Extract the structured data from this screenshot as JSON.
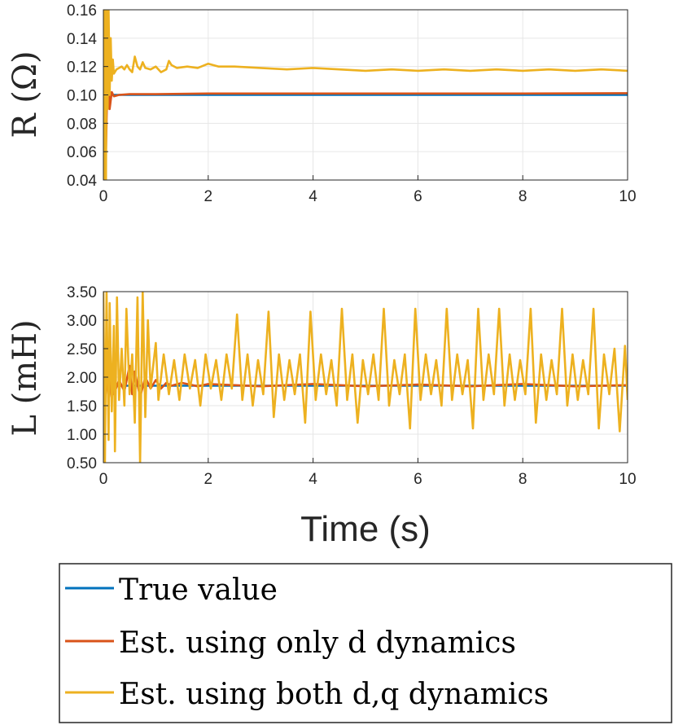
{
  "colors": {
    "true_value": "#0072BD",
    "d_only": "#D95319",
    "dq_both": "#EDB120",
    "grid": "#e6e6e6",
    "axis": "#262626"
  },
  "chart_data": [
    {
      "type": "line",
      "ylabel": "R (Ω)",
      "xlabel": "",
      "xlim": [
        0,
        10
      ],
      "ylim": [
        0.04,
        0.16
      ],
      "xticks": [
        0,
        2,
        4,
        6,
        8,
        10
      ],
      "xtick_labels": [
        "0",
        "2",
        "4",
        "6",
        "8",
        "10"
      ],
      "yticks": [
        0.04,
        0.06,
        0.08,
        0.1,
        0.12,
        0.14,
        0.16
      ],
      "ytick_labels": [
        "0.04",
        "0.06",
        "0.08",
        "0.10",
        "0.12",
        "0.14",
        "0.16"
      ],
      "grid": true,
      "series": [
        {
          "name": "True value",
          "color": "#0072BD",
          "x": [
            0,
            10
          ],
          "y": [
            0.1,
            0.1
          ]
        },
        {
          "name": "Est. using only d dynamics",
          "color": "#D95319",
          "x": [
            0,
            0.02,
            0.05,
            0.08,
            0.12,
            0.16,
            0.2,
            0.3,
            0.5,
            1,
            2,
            4,
            6,
            8,
            10
          ],
          "y": [
            0.1,
            0.13,
            0.06,
            0.12,
            0.09,
            0.102,
            0.099,
            0.1,
            0.1005,
            0.1005,
            0.101,
            0.101,
            0.101,
            0.101,
            0.1012
          ]
        },
        {
          "name": "Est. using both d,q dynamics",
          "color": "#EDB120",
          "x": [
            0,
            0.02,
            0.03,
            0.05,
            0.06,
            0.08,
            0.1,
            0.12,
            0.14,
            0.16,
            0.18,
            0.2,
            0.25,
            0.3,
            0.35,
            0.4,
            0.45,
            0.5,
            0.55,
            0.6,
            0.65,
            0.7,
            0.75,
            0.8,
            0.9,
            1.0,
            1.1,
            1.2,
            1.25,
            1.3,
            1.4,
            1.6,
            1.8,
            2.0,
            2.2,
            2.5,
            3.0,
            3.5,
            4.0,
            4.5,
            5.0,
            5.5,
            6.0,
            6.5,
            7.0,
            7.5,
            8.0,
            8.5,
            9.0,
            9.5,
            10
          ],
          "y": [
            0.16,
            0.04,
            0.16,
            0.04,
            0.16,
            0.09,
            0.16,
            0.1,
            0.14,
            0.11,
            0.125,
            0.115,
            0.118,
            0.119,
            0.12,
            0.118,
            0.121,
            0.118,
            0.116,
            0.127,
            0.12,
            0.118,
            0.123,
            0.119,
            0.118,
            0.12,
            0.116,
            0.118,
            0.124,
            0.121,
            0.119,
            0.12,
            0.119,
            0.122,
            0.12,
            0.12,
            0.119,
            0.118,
            0.119,
            0.118,
            0.117,
            0.118,
            0.117,
            0.118,
            0.117,
            0.118,
            0.117,
            0.118,
            0.117,
            0.118,
            0.117
          ]
        }
      ]
    },
    {
      "type": "line",
      "ylabel": "L (mH)",
      "xlabel": "Time (s)",
      "xlim": [
        0,
        10
      ],
      "ylim": [
        0.5,
        3.5
      ],
      "xticks": [
        0,
        2,
        4,
        6,
        8,
        10
      ],
      "xtick_labels": [
        "0",
        "2",
        "4",
        "6",
        "8",
        "10"
      ],
      "yticks": [
        0.5,
        1.0,
        1.5,
        2.0,
        2.5,
        3.0,
        3.5
      ],
      "ytick_labels": [
        "0.50",
        "1.00",
        "1.50",
        "2.00",
        "2.50",
        "3.00",
        "3.50"
      ],
      "grid": true,
      "series": [
        {
          "name": "True value",
          "color": "#0072BD",
          "x": [
            0,
            10
          ],
          "y": [
            1.85,
            1.85
          ]
        },
        {
          "name": "Est. using only d dynamics",
          "color": "#D95319",
          "x": [
            0,
            0.05,
            0.1,
            0.15,
            0.2,
            0.3,
            0.4,
            0.5,
            0.55,
            0.6,
            0.7,
            0.8,
            0.9,
            1.0,
            1.1,
            1.2,
            1.3,
            1.5,
            1.8,
            2.0,
            3.0,
            4.0,
            5.0,
            6.0,
            7.0,
            8.0,
            9.0,
            10.0
          ],
          "y": [
            1.85,
            2.1,
            1.6,
            2.0,
            1.7,
            1.95,
            1.75,
            2.2,
            1.7,
            2.1,
            1.65,
            2.0,
            1.8,
            1.95,
            1.8,
            1.9,
            1.85,
            1.9,
            1.84,
            1.88,
            1.84,
            1.88,
            1.84,
            1.87,
            1.84,
            1.88,
            1.84,
            1.86
          ]
        },
        {
          "name": "Est. using both d,q dynamics",
          "color": "#EDB120",
          "x": [
            0,
            0.03,
            0.06,
            0.1,
            0.12,
            0.16,
            0.2,
            0.22,
            0.26,
            0.3,
            0.35,
            0.4,
            0.44,
            0.5,
            0.55,
            0.6,
            0.65,
            0.7,
            0.75,
            0.8,
            0.85,
            0.9,
            1.0,
            1.05,
            1.15,
            1.25,
            1.35,
            1.45,
            1.55,
            1.65,
            1.75,
            1.85,
            1.95,
            2.05,
            2.15,
            2.25,
            2.35,
            2.45,
            2.55,
            2.65,
            2.75,
            2.85,
            2.95,
            3.05,
            3.15,
            3.25,
            3.35,
            3.45,
            3.55,
            3.65,
            3.75,
            3.85,
            3.95,
            4.05,
            4.15,
            4.25,
            4.35,
            4.45,
            4.55,
            4.65,
            4.75,
            4.85,
            4.95,
            5.05,
            5.15,
            5.25,
            5.35,
            5.45,
            5.55,
            5.65,
            5.75,
            5.85,
            5.95,
            6.05,
            6.15,
            6.25,
            6.35,
            6.45,
            6.55,
            6.65,
            6.75,
            6.85,
            6.95,
            7.05,
            7.15,
            7.25,
            7.35,
            7.45,
            7.55,
            7.65,
            7.75,
            7.85,
            7.95,
            8.05,
            8.15,
            8.25,
            8.35,
            8.45,
            8.55,
            8.65,
            8.75,
            8.85,
            8.95,
            9.05,
            9.15,
            9.25,
            9.35,
            9.45,
            9.55,
            9.65,
            9.75,
            9.85,
            9.95,
            10.0
          ],
          "y": [
            3.5,
            0.5,
            3.5,
            0.9,
            3.3,
            1.4,
            2.9,
            0.7,
            3.4,
            1.6,
            2.5,
            1.5,
            3.2,
            1.7,
            2.4,
            1.2,
            3.4,
            0.5,
            3.5,
            1.3,
            3.0,
            1.8,
            2.6,
            1.6,
            2.4,
            1.7,
            2.3,
            1.6,
            2.4,
            1.8,
            2.3,
            1.5,
            2.4,
            1.8,
            2.3,
            1.6,
            2.4,
            1.8,
            3.1,
            1.6,
            2.4,
            1.5,
            2.3,
            1.7,
            3.15,
            1.3,
            2.4,
            1.6,
            2.3,
            1.7,
            2.4,
            1.2,
            3.15,
            1.6,
            2.4,
            1.7,
            2.3,
            1.5,
            3.2,
            1.6,
            2.4,
            1.2,
            2.3,
            1.7,
            2.4,
            1.6,
            3.2,
            1.5,
            2.3,
            1.7,
            2.4,
            1.1,
            3.2,
            1.6,
            2.4,
            1.7,
            2.3,
            1.5,
            3.2,
            1.6,
            2.4,
            1.7,
            2.3,
            1.1,
            3.2,
            1.6,
            2.4,
            1.7,
            3.2,
            1.5,
            2.4,
            1.6,
            2.3,
            1.7,
            3.2,
            1.2,
            2.4,
            1.6,
            2.3,
            1.7,
            3.2,
            1.5,
            2.4,
            1.6,
            2.3,
            1.7,
            3.2,
            1.1,
            2.4,
            1.7,
            2.5,
            1.05,
            2.55,
            1.6
          ]
        }
      ]
    }
  ],
  "legend": {
    "placement": "bottom",
    "entries": [
      {
        "label": "True value",
        "color": "#0072BD"
      },
      {
        "label": "Est. using only d dynamics",
        "color": "#D95319"
      },
      {
        "label": "Est. using both d,q dynamics",
        "color": "#EDB120"
      }
    ]
  }
}
